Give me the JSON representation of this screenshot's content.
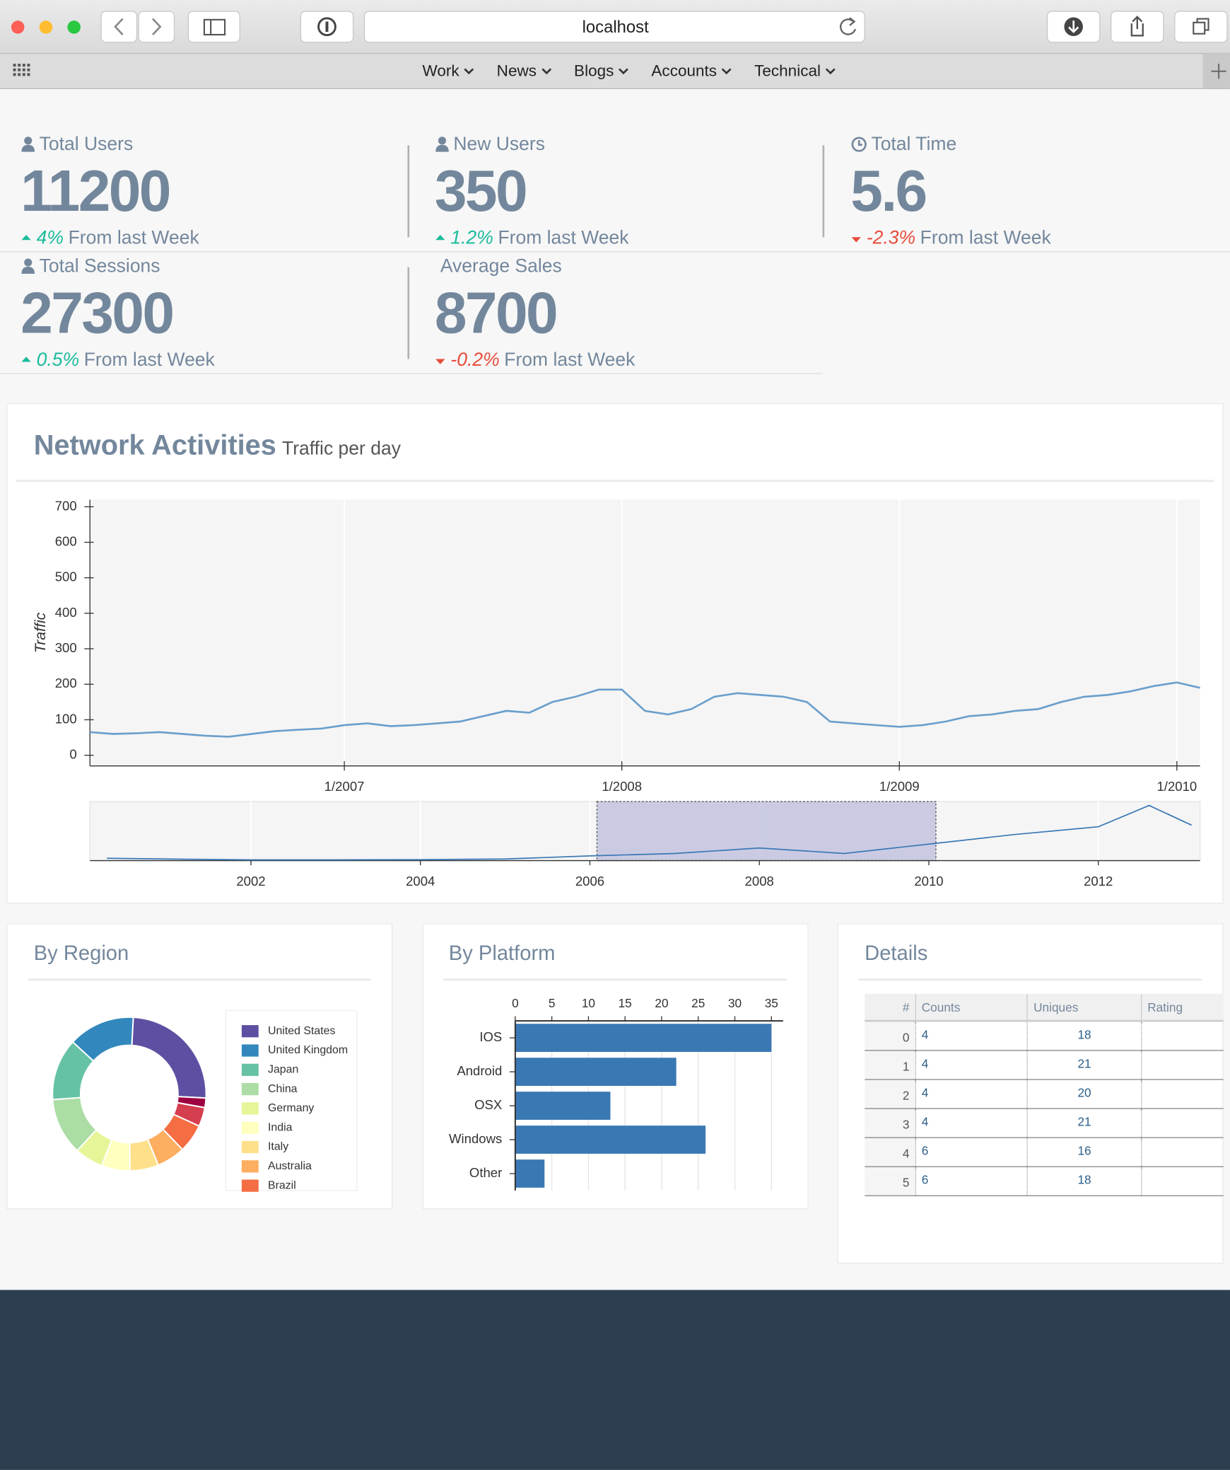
{
  "browser": {
    "url": "localhost"
  },
  "nav": [
    "Work",
    "News",
    "Blogs",
    "Accounts",
    "Technical"
  ],
  "stats": [
    {
      "label": "Total Users",
      "value": 11200,
      "change": "4%",
      "trend": "up",
      "note": "From last Week"
    },
    {
      "label": "New Users",
      "value": 350,
      "change": "1.2%",
      "trend": "up",
      "note": "From last Week"
    },
    {
      "label": "Total Time",
      "value": 5.6,
      "change": "-2.3%",
      "trend": "down",
      "note": "From last Week"
    },
    {
      "label": "Total Sessions",
      "value": 27300,
      "change": "0.5%",
      "trend": "up",
      "note": "From last Week"
    },
    {
      "label": "Average Sales",
      "value": 8700,
      "change": "-0.2%",
      "trend": "down",
      "note": "From last Week"
    }
  ],
  "chart_data": [
    {
      "type": "line",
      "title": "Network Activities",
      "subtitle": "Traffic per day",
      "y_label": "Traffic",
      "color": "#6a9fcc",
      "grid": true,
      "x": [
        "2006-02",
        "2006-03",
        "2006-04",
        "2006-05",
        "2006-06",
        "2006-07",
        "2006-08",
        "2006-09",
        "2006-10",
        "2006-11",
        "2006-12",
        "2007-01",
        "2007-02",
        "2007-03",
        "2007-04",
        "2007-05",
        "2007-06",
        "2007-07",
        "2007-08",
        "2007-09",
        "2007-10",
        "2007-11",
        "2007-12",
        "2008-01",
        "2008-02",
        "2008-03",
        "2008-04",
        "2008-05",
        "2008-06",
        "2008-07",
        "2008-08",
        "2008-09",
        "2008-10",
        "2008-11",
        "2008-12",
        "2009-01",
        "2009-02",
        "2009-03",
        "2009-04",
        "2009-05",
        "2009-06",
        "2009-07",
        "2009-08",
        "2009-09",
        "2009-10",
        "2009-11",
        "2009-12",
        "2010-01",
        "2010-02"
      ],
      "values": [
        65,
        60,
        62,
        65,
        60,
        55,
        52,
        60,
        68,
        72,
        75,
        85,
        90,
        82,
        85,
        90,
        95,
        110,
        125,
        120,
        150,
        165,
        185,
        185,
        125,
        115,
        130,
        165,
        175,
        170,
        165,
        150,
        95,
        90,
        85,
        80,
        85,
        95,
        110,
        115,
        125,
        130,
        150,
        165,
        170,
        180,
        195,
        205,
        190
      ],
      "xlim": [
        "2006-02",
        "2010-02"
      ],
      "xticks": [
        {
          "value": "2007-01",
          "label": "1/2007"
        },
        {
          "value": "2008-01",
          "label": "1/2008"
        },
        {
          "value": "2009-01",
          "label": "1/2009"
        },
        {
          "value": "2010-01",
          "label": "1/2010"
        }
      ],
      "ylim": [
        -30,
        720
      ],
      "yticks": [
        0,
        100,
        200,
        300,
        400,
        500,
        600,
        700
      ]
    },
    {
      "type": "range",
      "color": "#3a78b5",
      "selection_color": "#c5c6e0",
      "grid": true,
      "x": [
        2000.3,
        2001,
        2002,
        2003,
        2004,
        2005,
        2006,
        2007,
        2008,
        2009,
        2010,
        2011,
        2012,
        2012.6,
        2013.1
      ],
      "values": [
        30,
        20,
        10,
        10,
        12,
        20,
        60,
        90,
        160,
        90,
        210,
        330,
        430,
        700,
        450
      ],
      "xlim": [
        2000.1,
        2013.2
      ],
      "xticks": [
        2002,
        2004,
        2006,
        2008,
        2010,
        2012
      ],
      "ylim": [
        0,
        750
      ]
    },
    {
      "type": "pie",
      "title": "By Region",
      "categories": [
        "United States",
        "United Kingdom",
        "Japan",
        "China",
        "Germany",
        "India",
        "Italy",
        "Australia",
        "Brazil",
        null,
        null
      ],
      "values": [
        25,
        14,
        13,
        12,
        6,
        6,
        6,
        6,
        6,
        4,
        2
      ],
      "colors": [
        "#5e4fa2",
        "#3288bd",
        "#66c2a5",
        "#abdda4",
        "#e6f598",
        "#ffffbf",
        "#fee08b",
        "#fdae61",
        "#f46d43",
        "#d53e4f",
        "#9e0142"
      ]
    },
    {
      "type": "hbar",
      "title": "By Platform",
      "categories": [
        "IOS",
        "Android",
        "OSX",
        "Windows",
        "Other"
      ],
      "values": [
        35,
        22,
        13,
        26,
        4
      ],
      "color": "#3a78b3",
      "grid": true,
      "xlim": [
        0,
        36.6
      ],
      "xticks": [
        0,
        5,
        10,
        15,
        20,
        25,
        30,
        35
      ]
    }
  ],
  "details": {
    "title": "Details",
    "table": {
      "columns": [
        "#",
        "Counts",
        "Uniques",
        "Rating"
      ],
      "rows": [
        [
          0,
          4,
          18
        ],
        [
          1,
          4,
          21
        ],
        [
          2,
          4,
          20
        ],
        [
          3,
          4,
          21
        ],
        [
          4,
          6,
          16
        ],
        [
          5,
          6,
          18
        ]
      ]
    }
  }
}
